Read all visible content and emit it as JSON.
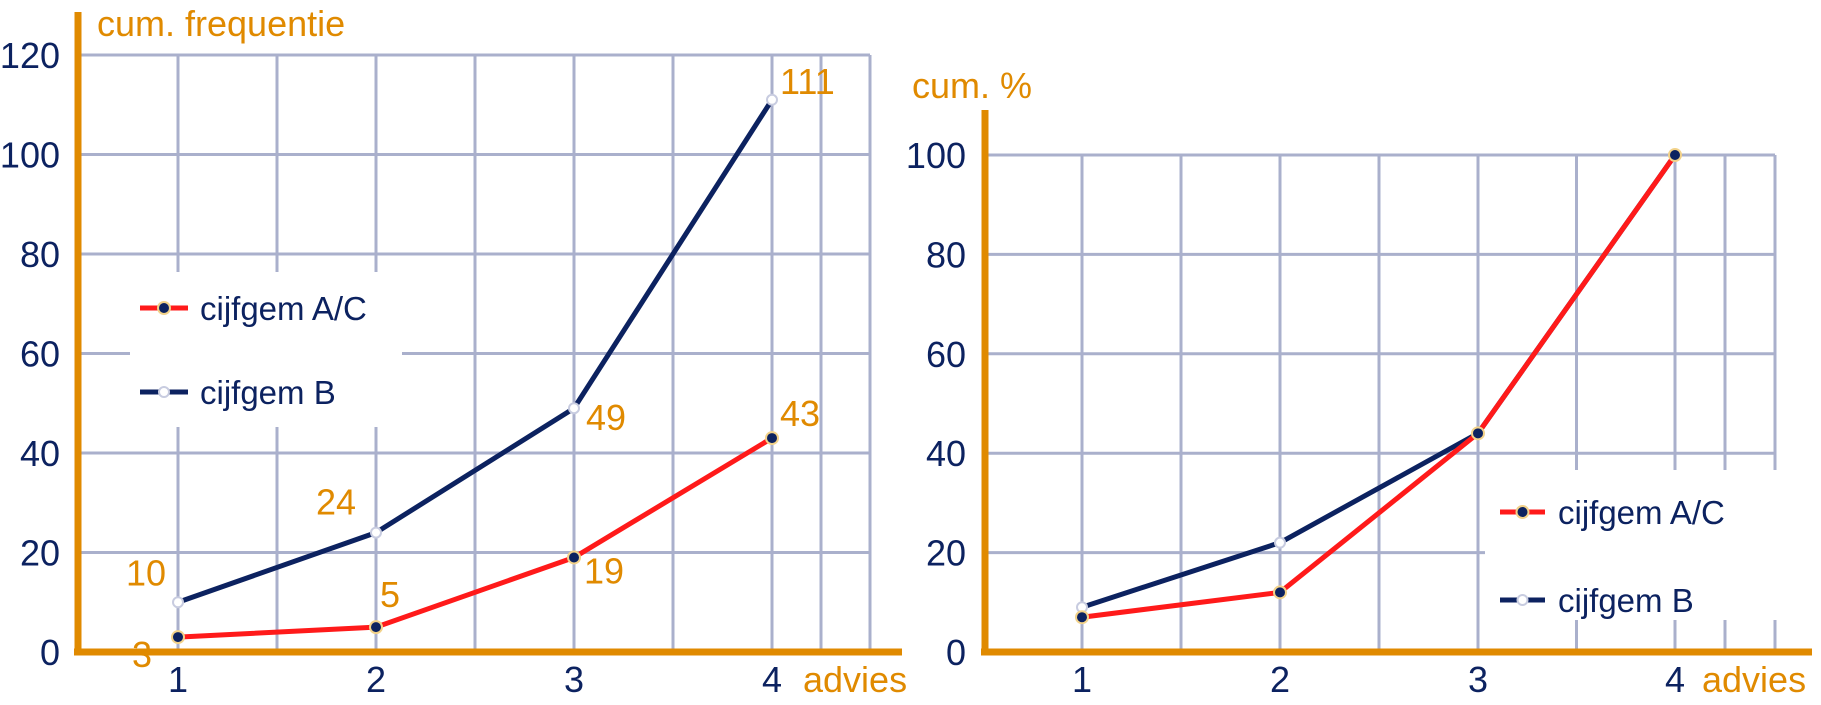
{
  "colors": {
    "axis": "#E08A00",
    "grid": "#AAB0CC",
    "tick_text": "#0C2260",
    "series_a": "#FF1A1A",
    "series_b": "#0C2260",
    "data_label": "#E08A00",
    "marker_fill": "#0C2260"
  },
  "chart_data": [
    {
      "type": "line",
      "ylabel": "cum. frequentie",
      "xlabel": "advies",
      "x": [
        1,
        2,
        3,
        4
      ],
      "xticks": [
        "1",
        "2",
        "3",
        "4"
      ],
      "xlim": [
        0.5,
        4.5
      ],
      "ylim": [
        0,
        120
      ],
      "yticks": [
        "0",
        "20",
        "40",
        "60",
        "80",
        "100",
        "120"
      ],
      "grid": true,
      "legend_position": "center-left",
      "series": [
        {
          "name": "cijfgem A/C",
          "values": [
            3,
            5,
            19,
            43
          ],
          "labels": [
            "3",
            "5",
            "19",
            "43"
          ]
        },
        {
          "name": "cijfgem B",
          "values": [
            10,
            24,
            49,
            111
          ],
          "labels": [
            "10",
            "24",
            "49",
            "111"
          ]
        }
      ]
    },
    {
      "type": "line",
      "ylabel": "cum. %",
      "xlabel": "advies",
      "x": [
        1,
        2,
        3,
        4
      ],
      "xticks": [
        "1",
        "2",
        "3",
        "4"
      ],
      "xlim": [
        0.5,
        4.5
      ],
      "ylim": [
        0,
        100
      ],
      "yticks": [
        "0",
        "20",
        "40",
        "60",
        "80",
        "100"
      ],
      "grid": true,
      "legend_position": "bottom-right",
      "series": [
        {
          "name": "cijfgem A/C",
          "values": [
            7,
            12,
            44,
            100
          ]
        },
        {
          "name": "cijfgem B",
          "values": [
            9,
            22,
            44,
            100
          ]
        }
      ]
    }
  ]
}
